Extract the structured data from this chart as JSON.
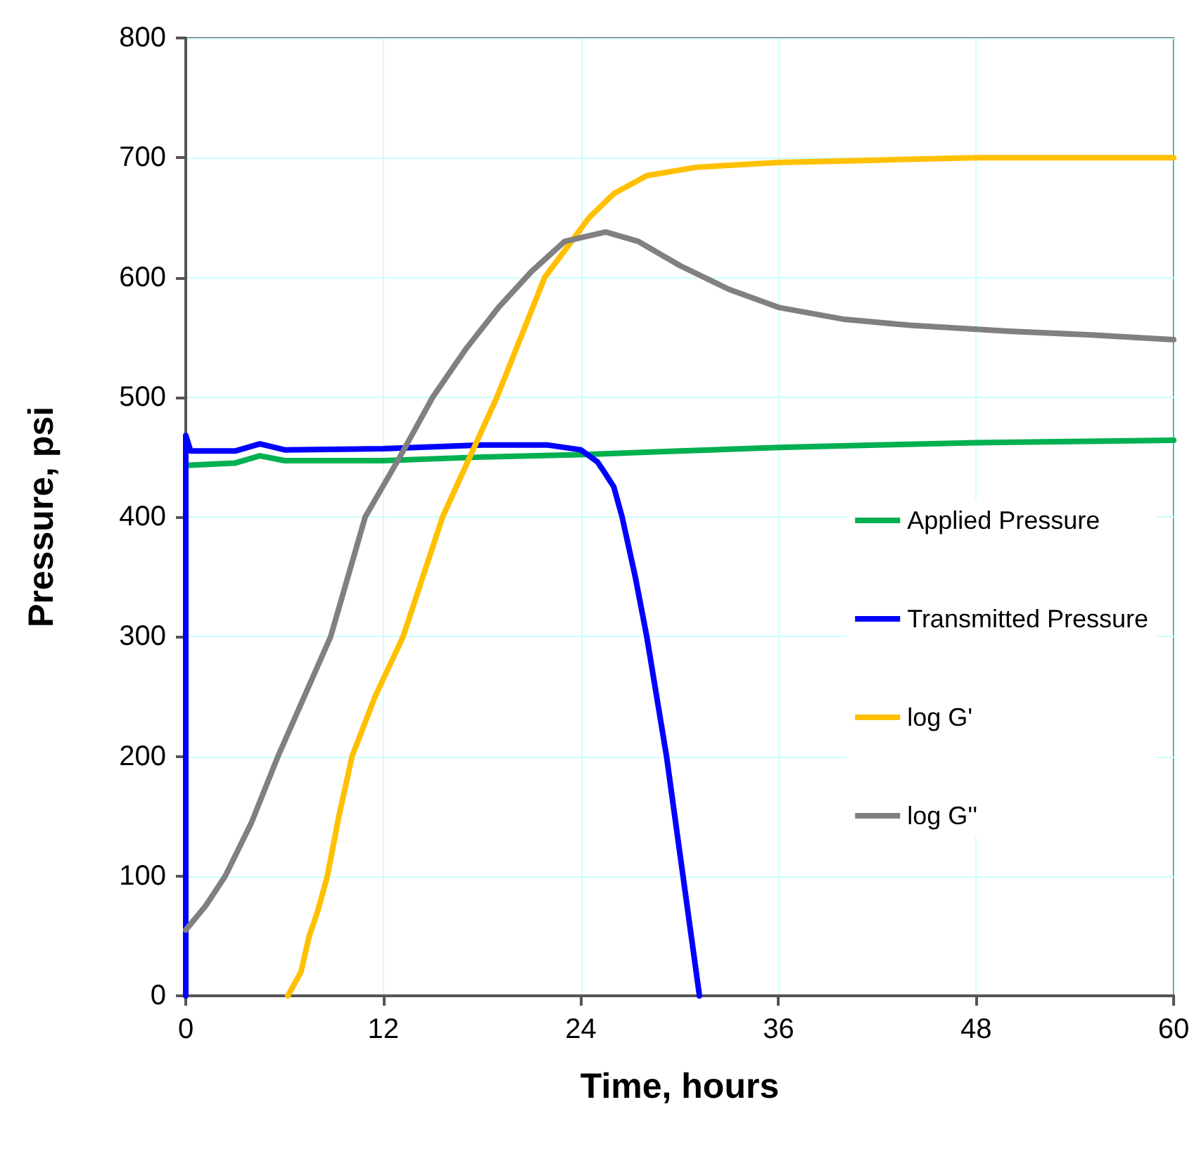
{
  "chart_data": {
    "type": "line",
    "xlabel": "Time, hours",
    "ylabel": "Pressure, psi",
    "xlim": [
      0,
      60
    ],
    "xticks": [
      0,
      12,
      24,
      36,
      48,
      60
    ],
    "ylim": [
      0,
      800
    ],
    "yticks": [
      0,
      100,
      200,
      300,
      400,
      500,
      600,
      700,
      800
    ],
    "grid": true,
    "legend": "right",
    "marker": "none",
    "line_style": "solid",
    "series": [
      {
        "name": "Applied Pressure",
        "color": "#00b050",
        "x": [
          0,
          3,
          4.5,
          6,
          12,
          18,
          24,
          30,
          36,
          42,
          48,
          54,
          60
        ],
        "values": [
          443,
          445,
          451,
          447,
          447,
          450,
          452,
          455,
          458,
          460,
          462,
          463,
          464
        ]
      },
      {
        "name": "Transmitted Pressure",
        "color": "#0000ff",
        "x": [
          0,
          0,
          0.3,
          3,
          4.5,
          6,
          12,
          18,
          22,
          24,
          25,
          25.3,
          26,
          26.5,
          27.3,
          28,
          28.6,
          29.2,
          29.7,
          30.2,
          30.7,
          31.2
        ],
        "values": [
          0,
          468,
          455,
          455,
          461,
          456,
          457,
          460,
          460,
          456,
          446,
          440,
          425,
          400,
          350,
          300,
          250,
          200,
          150,
          100,
          50,
          0
        ]
      },
      {
        "name": "log G'",
        "color": "#ffc000",
        "x": [
          6.2,
          7,
          7.5,
          8,
          8.6,
          9.3,
          10.1,
          11.5,
          13.2,
          15.6,
          18.9,
          21.8,
          24.5,
          26,
          28,
          31,
          36,
          42,
          48,
          54,
          60
        ],
        "values": [
          0,
          20,
          50,
          70,
          100,
          150,
          200,
          250,
          300,
          400,
          500,
          600,
          650,
          670,
          685,
          692,
          696,
          698,
          700,
          700,
          700
        ]
      },
      {
        "name": "log G''",
        "color": "#808080",
        "x": [
          0,
          1.2,
          2.4,
          4,
          5.6,
          7.2,
          8.8,
          10.9,
          13,
          15,
          17,
          19,
          21,
          23,
          25.5,
          27.5,
          30,
          33,
          36,
          40,
          44,
          50,
          55,
          60
        ],
        "values": [
          55,
          75,
          100,
          145,
          200,
          250,
          300,
          400,
          450,
          500,
          540,
          575,
          605,
          630,
          638,
          630,
          610,
          590,
          575,
          565,
          560,
          555,
          552,
          548
        ]
      }
    ]
  }
}
